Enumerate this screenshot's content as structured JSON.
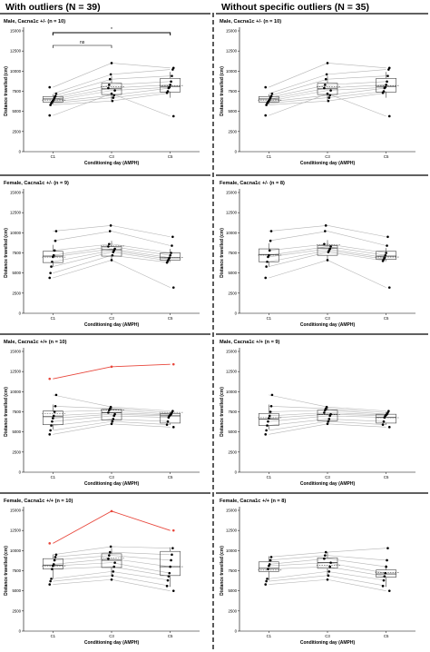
{
  "header": {
    "left_title": "With outliers (N = 39)",
    "right_title": "Without specific outliers (N = 35)"
  },
  "colors": {
    "outlier_line": "#e8473c",
    "subject_line": "#b5b5b5",
    "box": "#444444",
    "point": "#000000"
  },
  "chart_data": [
    {
      "type": "box+paired-line",
      "column": "With outliers (N = 39)",
      "title": "Male, Cacna1c +/- (n = 10)",
      "xlabel": "Conditioning day (AMPH)",
      "ylabel": "Distance travelled (cm)",
      "categories": [
        "C1",
        "C3",
        "C5"
      ],
      "ylim": [
        0,
        15000
      ],
      "yticks": [
        0,
        2500,
        5000,
        7500,
        10000,
        12500,
        15000
      ],
      "box": [
        [
          5900,
          6150,
          6550,
          6850,
          7100
        ],
        [
          6300,
          7100,
          7800,
          8500,
          9400
        ],
        [
          6700,
          7400,
          8100,
          9100,
          9900
        ]
      ],
      "subjects": [
        [
          4500,
          7200,
          4400
        ],
        [
          5800,
          6300,
          7300
        ],
        [
          6000,
          6700,
          7500
        ],
        [
          6200,
          7000,
          7900
        ],
        [
          6300,
          7600,
          8000
        ],
        [
          6500,
          7900,
          8300
        ],
        [
          6700,
          8300,
          8700
        ],
        [
          6900,
          9000,
          9400
        ],
        [
          7200,
          9600,
          10200
        ],
        [
          8000,
          11000,
          10400
        ]
      ],
      "significance": [
        {
          "from": "C1",
          "to": "C3",
          "label": "ns"
        },
        {
          "from": "C1",
          "to": "C5",
          "label": "*"
        }
      ]
    },
    {
      "type": "box+paired-line",
      "column": "Without specific outliers (N = 35)",
      "title": "Male, Cacna1c +/- (n = 10)",
      "xlabel": "Conditioning day (AMPH)",
      "ylabel": "Distance travelled (cm)",
      "categories": [
        "C1",
        "C3",
        "C5"
      ],
      "ylim": [
        0,
        15000
      ],
      "yticks": [
        0,
        2500,
        5000,
        7500,
        10000,
        12500,
        15000
      ],
      "box": [
        [
          5900,
          6150,
          6550,
          6850,
          7100
        ],
        [
          6300,
          7100,
          7800,
          8500,
          9400
        ],
        [
          6700,
          7400,
          8100,
          9100,
          9900
        ]
      ],
      "subjects": [
        [
          4500,
          7200,
          4400
        ],
        [
          5800,
          6300,
          7300
        ],
        [
          6000,
          6700,
          7500
        ],
        [
          6200,
          7000,
          7900
        ],
        [
          6300,
          7600,
          8000
        ],
        [
          6500,
          7900,
          8300
        ],
        [
          6700,
          8300,
          8700
        ],
        [
          6900,
          9000,
          9400
        ],
        [
          7200,
          9600,
          10200
        ],
        [
          8000,
          11000,
          10400
        ]
      ],
      "significance": []
    },
    {
      "type": "box+paired-line",
      "column": "With outliers (N = 39)",
      "title": "Female, Cacna1c +/- (n = 9)",
      "xlabel": "Conditioning day (AMPH)",
      "ylabel": "Distance travelled (cm)",
      "categories": [
        "C1",
        "C3",
        "C5"
      ],
      "ylim": [
        0,
        15000
      ],
      "yticks": [
        0,
        2500,
        5000,
        7500,
        10000,
        12500,
        15000
      ],
      "box": [
        [
          5800,
          6300,
          7100,
          7700,
          8500
        ],
        [
          6600,
          7100,
          7900,
          8300,
          9000
        ],
        [
          6400,
          6600,
          6900,
          7500,
          8000
        ]
      ],
      "subjects": [
        [
          4400,
          6600,
          3200
        ],
        [
          5000,
          7200,
          6300
        ],
        [
          5800,
          7600,
          6500
        ],
        [
          6400,
          7800,
          6700
        ],
        [
          7000,
          8000,
          6900
        ],
        [
          7200,
          8300,
          7200
        ],
        [
          7800,
          8600,
          7500
        ],
        [
          9000,
          10200,
          8400
        ],
        [
          10200,
          10900,
          9500
        ]
      ],
      "significance": []
    },
    {
      "type": "box+paired-line",
      "column": "Without specific outliers (N = 35)",
      "title": "Female, Cacna1c +/- (n = 8)",
      "xlabel": "Conditioning day (AMPH)",
      "ylabel": "Distance travelled (cm)",
      "categories": [
        "C1",
        "C3",
        "C5"
      ],
      "ylim": [
        0,
        15000
      ],
      "yticks": [
        0,
        2500,
        5000,
        7500,
        10000,
        12500,
        15000
      ],
      "box": [
        [
          5800,
          6400,
          7300,
          8000,
          8700
        ],
        [
          6700,
          7200,
          8100,
          8400,
          9100
        ],
        [
          6500,
          6700,
          7100,
          7700,
          8100
        ]
      ],
      "subjects": [
        [
          4400,
          6600,
          3200
        ],
        [
          5800,
          7600,
          6500
        ],
        [
          6400,
          7800,
          6700
        ],
        [
          7000,
          8000,
          6900
        ],
        [
          7200,
          8300,
          7200
        ],
        [
          7800,
          8600,
          7500
        ],
        [
          9000,
          10200,
          8400
        ],
        [
          10200,
          10900,
          9500
        ]
      ],
      "significance": []
    },
    {
      "type": "box+paired-line",
      "column": "With outliers (N = 39)",
      "title": "Male, Cacna1c +/+ (n = 10)",
      "xlabel": "Conditioning day (AMPH)",
      "ylabel": "Distance travelled (cm)",
      "categories": [
        "C1",
        "C3",
        "C5"
      ],
      "ylim": [
        0,
        15000
      ],
      "yticks": [
        0,
        2500,
        5000,
        7500,
        10000,
        12500,
        15000
      ],
      "box": [
        [
          5300,
          5900,
          6900,
          7600,
          8400
        ],
        [
          6100,
          6500,
          7400,
          7800,
          8100
        ],
        [
          5900,
          6100,
          7000,
          7300,
          7500
        ]
      ],
      "subjects": [
        [
          4700,
          6000,
          5600
        ],
        [
          5200,
          6300,
          5900
        ],
        [
          5800,
          6600,
          6300
        ],
        [
          6300,
          7000,
          6800
        ],
        [
          6700,
          7200,
          7000
        ],
        [
          7000,
          7400,
          7100
        ],
        [
          7500,
          7700,
          7200
        ],
        [
          8200,
          7900,
          7400
        ],
        [
          9600,
          8100,
          7600
        ],
        [
          11600,
          13100,
          13400
        ]
      ],
      "outlier_index": 9,
      "significance": []
    },
    {
      "type": "box+paired-line",
      "column": "Without specific outliers (N = 35)",
      "title": "Male, Cacna1c +/+ (n = 9)",
      "xlabel": "Conditioning day (AMPH)",
      "ylabel": "Distance travelled (cm)",
      "categories": [
        "C1",
        "C3",
        "C5"
      ],
      "ylim": [
        0,
        15000
      ],
      "yticks": [
        0,
        2500,
        5000,
        7500,
        10000,
        12500,
        15000
      ],
      "box": [
        [
          5300,
          5800,
          6600,
          7300,
          8400
        ],
        [
          6100,
          6400,
          7200,
          7700,
          8100
        ],
        [
          5900,
          6100,
          6800,
          7200,
          7500
        ]
      ],
      "subjects": [
        [
          4700,
          6000,
          5600
        ],
        [
          5200,
          6300,
          5900
        ],
        [
          5800,
          6600,
          6300
        ],
        [
          6300,
          7000,
          6800
        ],
        [
          6700,
          7200,
          7000
        ],
        [
          7000,
          7400,
          7100
        ],
        [
          7500,
          7700,
          7200
        ],
        [
          8200,
          7900,
          7400
        ],
        [
          9600,
          8100,
          7600
        ]
      ],
      "significance": []
    },
    {
      "type": "box+paired-line",
      "column": "With outliers (N = 39)",
      "title": "Female, Cacna1c +/+ (n = 10)",
      "xlabel": "Conditioning day (AMPH)",
      "ylabel": "Distance travelled (cm)",
      "categories": [
        "C1",
        "C3",
        "C5"
      ],
      "ylim": [
        0,
        15000
      ],
      "yticks": [
        0,
        2500,
        5000,
        7500,
        10000,
        12500,
        15000
      ],
      "box": [
        [
          6500,
          7700,
          8200,
          9000,
          9500
        ],
        [
          7000,
          7900,
          8800,
          9600,
          10300
        ],
        [
          5500,
          6900,
          8000,
          9900,
          10400
        ]
      ],
      "subjects": [
        [
          5800,
          6400,
          5000
        ],
        [
          6200,
          6900,
          5600
        ],
        [
          6500,
          7400,
          6300
        ],
        [
          7700,
          8000,
          6800
        ],
        [
          8100,
          8500,
          7200
        ],
        [
          8300,
          9000,
          8000
        ],
        [
          8800,
          9400,
          8800
        ],
        [
          9200,
          9800,
          9500
        ],
        [
          9500,
          10500,
          10300
        ],
        [
          10900,
          14900,
          12500
        ]
      ],
      "outlier_index": 9,
      "significance": []
    },
    {
      "type": "box+paired-line",
      "column": "Without specific outliers (N = 35)",
      "title": "Female, Cacna1c +/+ (n = 8)",
      "xlabel": "Conditioning day (AMPH)",
      "ylabel": "Distance travelled (cm)",
      "categories": [
        "C1",
        "C3",
        "C5"
      ],
      "ylim": [
        0,
        15000
      ],
      "yticks": [
        0,
        2500,
        5000,
        7500,
        10000,
        12500,
        15000
      ],
      "box": [
        [
          6300,
          7400,
          7800,
          8600,
          9300
        ],
        [
          6800,
          7800,
          8500,
          9100,
          9800
        ],
        [
          5500,
          6700,
          7100,
          7600,
          8200
        ]
      ],
      "subjects": [
        [
          5800,
          6400,
          5000
        ],
        [
          6200,
          6900,
          5600
        ],
        [
          6500,
          7400,
          6300
        ],
        [
          7700,
          8000,
          6800
        ],
        [
          8100,
          8500,
          7200
        ],
        [
          8300,
          9000,
          8000
        ],
        [
          8800,
          9400,
          8800
        ],
        [
          9200,
          9800,
          10300
        ]
      ],
      "significance": []
    }
  ]
}
